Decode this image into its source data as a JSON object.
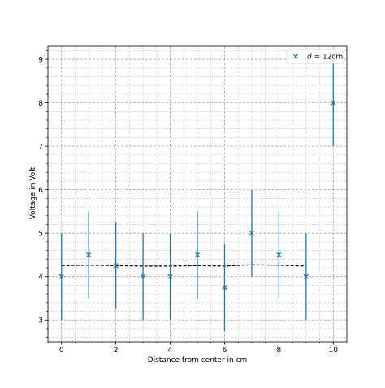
{
  "chart_data": {
    "type": "scatter",
    "xlabel": "Distance from center in cm",
    "ylabel": "Voltage in Volt",
    "xlim": [
      -0.5,
      10.5
    ],
    "ylim": [
      2.5,
      9.3
    ],
    "x_ticks": [
      0,
      2,
      4,
      6,
      8,
      10
    ],
    "y_ticks": [
      3,
      4,
      5,
      6,
      7,
      8,
      9
    ],
    "x_minor_step": 0.5,
    "y_minor_step": 0.2,
    "grid": true,
    "legend_position": "top-right",
    "series": [
      {
        "name": "d = 12cm",
        "legend_var": "d",
        "legend_rest": " = 12cm",
        "marker": "x",
        "color": "#1f77b4",
        "x": [
          0,
          1,
          2,
          3,
          4,
          5,
          6,
          7,
          8,
          9,
          10
        ],
        "y": [
          4.0,
          4.5,
          4.25,
          4.0,
          4.0,
          4.5,
          3.75,
          5.0,
          4.5,
          4.0,
          8.0
        ],
        "yerr": [
          1.0,
          1.0,
          1.0,
          1.0,
          1.0,
          1.0,
          1.0,
          1.0,
          1.0,
          1.0,
          1.0
        ]
      }
    ],
    "fit_line": {
      "style": "dashed",
      "color": "#000000",
      "x": [
        0,
        1,
        2,
        3,
        4,
        5,
        6,
        7,
        8,
        9
      ],
      "y": [
        4.25,
        4.26,
        4.25,
        4.24,
        4.24,
        4.25,
        4.24,
        4.27,
        4.26,
        4.24
      ]
    }
  }
}
